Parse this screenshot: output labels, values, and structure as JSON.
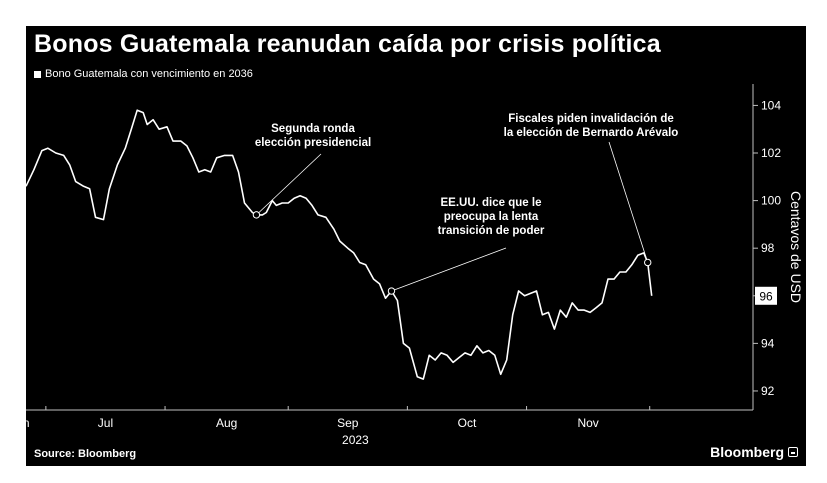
{
  "chart_data": {
    "type": "line",
    "title": "Bonos Guatemala reanudan caída por crisis política",
    "series": [
      {
        "name": "Bono Guatemala con vencimiento en 2036",
        "values": [
          [
            0.0,
            100.6
          ],
          [
            2.0,
            101.3
          ],
          [
            4.0,
            102.1
          ],
          [
            5.5,
            102.2
          ],
          [
            7.5,
            102.0
          ],
          [
            9.5,
            101.9
          ],
          [
            11.0,
            101.5
          ],
          [
            12.5,
            100.8
          ],
          [
            14.5,
            100.6
          ],
          [
            16.0,
            100.5
          ],
          [
            17.5,
            99.3
          ],
          [
            19.5,
            99.2
          ],
          [
            21.0,
            100.5
          ],
          [
            23.0,
            101.5
          ],
          [
            25.0,
            102.2
          ],
          [
            26.5,
            103.0
          ],
          [
            28.0,
            103.8
          ],
          [
            29.5,
            103.7
          ],
          [
            30.5,
            103.2
          ],
          [
            32.0,
            103.4
          ],
          [
            33.5,
            103.0
          ],
          [
            35.5,
            103.1
          ],
          [
            37.0,
            102.5
          ],
          [
            39.0,
            102.5
          ],
          [
            40.5,
            102.3
          ],
          [
            42.0,
            101.8
          ],
          [
            43.5,
            101.2
          ],
          [
            45.0,
            101.3
          ],
          [
            46.5,
            101.2
          ],
          [
            48.0,
            101.8
          ],
          [
            50.0,
            101.9
          ],
          [
            52.0,
            101.9
          ],
          [
            53.5,
            101.2
          ],
          [
            55.0,
            99.9
          ],
          [
            57.0,
            99.5
          ],
          [
            58.0,
            99.4
          ],
          [
            59.5,
            99.4
          ],
          [
            60.5,
            99.5
          ],
          [
            62.0,
            100.0
          ],
          [
            63.0,
            99.8
          ],
          [
            64.5,
            99.9
          ],
          [
            66.0,
            99.9
          ],
          [
            67.5,
            100.1
          ],
          [
            69.0,
            100.2
          ],
          [
            70.5,
            100.1
          ],
          [
            72.0,
            99.8
          ],
          [
            73.5,
            99.4
          ],
          [
            75.5,
            99.3
          ],
          [
            77.5,
            98.8
          ],
          [
            79.0,
            98.3
          ],
          [
            81.0,
            98.0
          ],
          [
            82.5,
            97.8
          ],
          [
            84.0,
            97.4
          ],
          [
            85.5,
            97.3
          ],
          [
            87.5,
            96.7
          ],
          [
            89.0,
            96.5
          ],
          [
            90.5,
            95.9
          ],
          [
            92.0,
            96.2
          ],
          [
            93.5,
            95.8
          ],
          [
            95.0,
            94.0
          ],
          [
            96.5,
            93.8
          ],
          [
            98.5,
            92.6
          ],
          [
            100.0,
            92.5
          ],
          [
            101.5,
            93.5
          ],
          [
            103.0,
            93.3
          ],
          [
            104.5,
            93.6
          ],
          [
            106.0,
            93.5
          ],
          [
            107.5,
            93.2
          ],
          [
            109.0,
            93.4
          ],
          [
            110.5,
            93.6
          ],
          [
            112.0,
            93.5
          ],
          [
            113.5,
            93.9
          ],
          [
            115.0,
            93.6
          ],
          [
            116.5,
            93.7
          ],
          [
            118.0,
            93.5
          ],
          [
            119.5,
            92.7
          ],
          [
            121.0,
            93.3
          ],
          [
            122.5,
            95.2
          ],
          [
            124.0,
            96.2
          ],
          [
            125.5,
            96.0
          ],
          [
            127.0,
            96.1
          ],
          [
            128.5,
            96.2
          ],
          [
            130.0,
            95.2
          ],
          [
            131.5,
            95.3
          ],
          [
            133.0,
            94.6
          ],
          [
            134.5,
            95.4
          ],
          [
            136.0,
            95.1
          ],
          [
            137.5,
            95.7
          ],
          [
            139.0,
            95.4
          ],
          [
            140.5,
            95.4
          ],
          [
            142.0,
            95.3
          ],
          [
            143.5,
            95.5
          ],
          [
            145.0,
            95.7
          ],
          [
            146.5,
            96.7
          ],
          [
            148.0,
            96.7
          ],
          [
            149.5,
            97.0
          ],
          [
            151.0,
            97.0
          ],
          [
            152.5,
            97.3
          ],
          [
            154.0,
            97.7
          ],
          [
            155.5,
            97.8
          ],
          [
            156.5,
            97.4
          ],
          [
            157.5,
            96.0
          ]
        ]
      }
    ],
    "x_ticks": [
      {
        "label": "Jun",
        "day": 5
      },
      {
        "label": "Jul",
        "day": 35
      },
      {
        "label": "Aug",
        "day": 66
      },
      {
        "label": "Sep",
        "day": 96
      },
      {
        "label": "Oct",
        "day": 126
      },
      {
        "label": "Nov",
        "day": 157
      }
    ],
    "x_year_label": "2023",
    "xlim": [
      0,
      183
    ],
    "ylabel": "Centavos de USD",
    "y_ticks": [
      92,
      94,
      96,
      98,
      100,
      102,
      104
    ],
    "ylim": [
      91.2,
      104.9
    ],
    "last_value_label": "96",
    "annotations": [
      {
        "lines": [
          "Segunda ronda",
          "elección presidencial"
        ],
        "day": 58.0,
        "value": 99.4
      },
      {
        "lines": [
          "EE.UU. dice que le",
          "preocupa la lenta",
          "transición de poder"
        ],
        "day": 92.0,
        "value": 96.2
      },
      {
        "lines": [
          "Fiscales piden invalidación de",
          "la elección de Bernardo Arévalo"
        ],
        "day": 156.5,
        "value": 97.4
      }
    ],
    "grid": false,
    "legend": "top-left"
  },
  "source": "Source: Bloomberg",
  "brand": "Bloomberg"
}
